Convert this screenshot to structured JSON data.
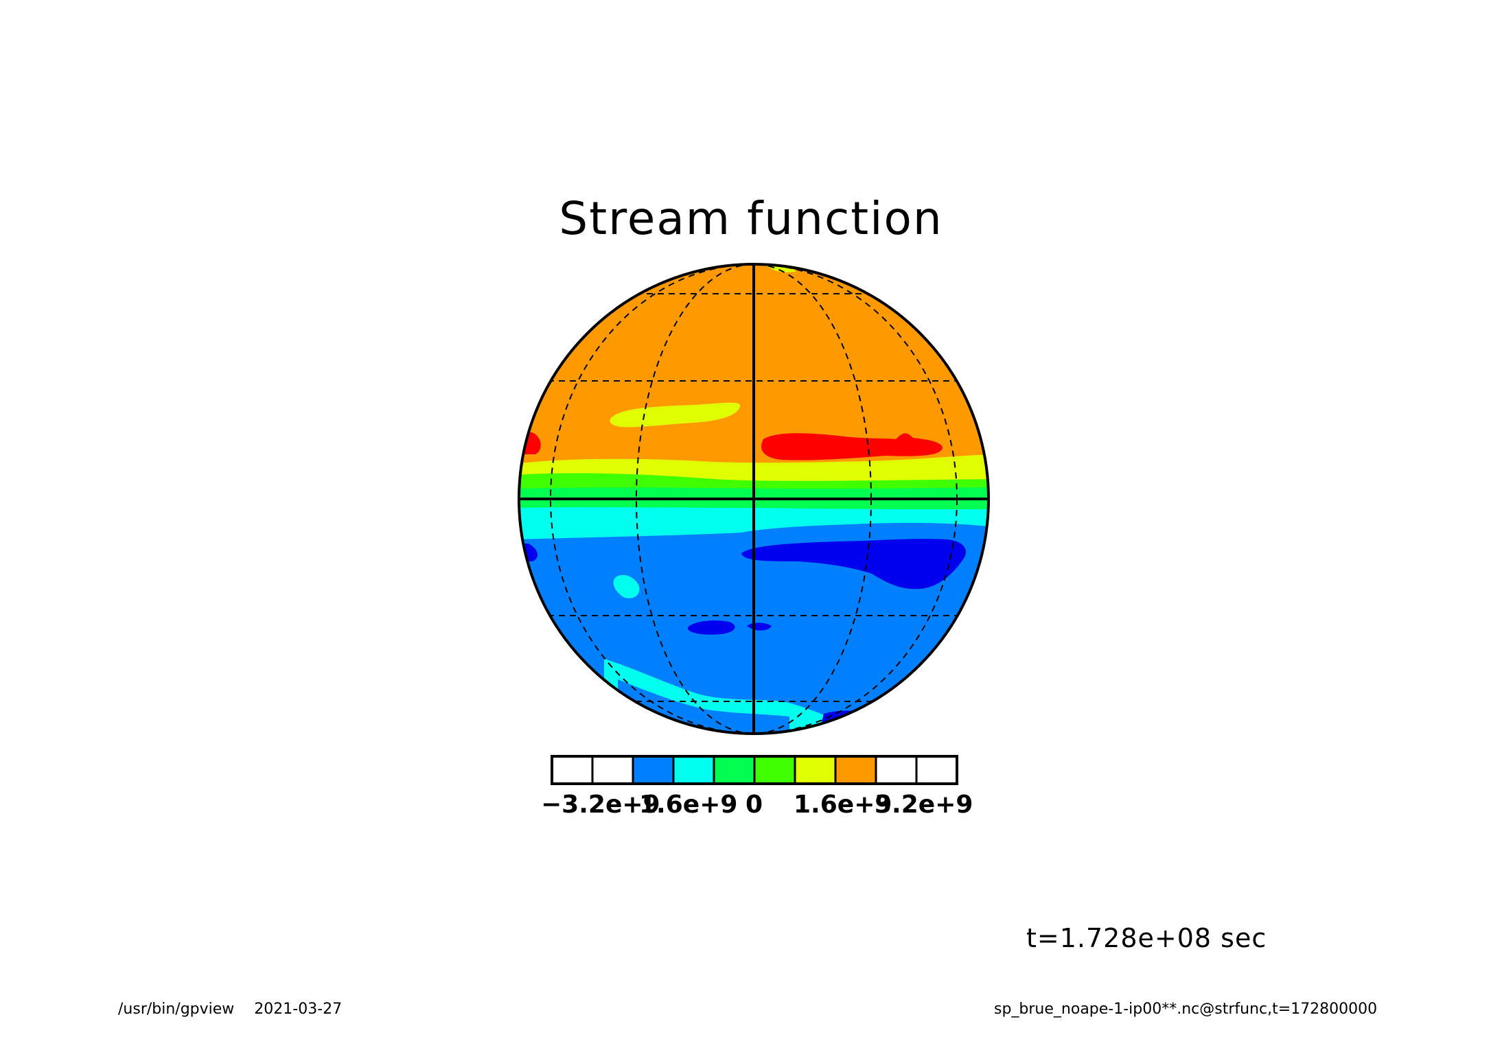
{
  "title": "Stream function",
  "time_label": "t=1.728e+08 sec",
  "footer": {
    "program": "/usr/bin/gpview",
    "date": "2021-03-27",
    "source": "sp_brue_noape-1-ip00**.nc@strfunc,t=172800000"
  },
  "colorbar": {
    "colors": [
      "#ffffff",
      "#ffffff",
      "#0080ff",
      "#00ffee",
      "#00ff50",
      "#40ff00",
      "#e0ff00",
      "#ff9900",
      "#ffffff",
      "#ffffff"
    ],
    "labels": [
      "−3.2e+9",
      "1.6e+9",
      "0",
      "1.6e+9",
      "3.2e+9"
    ]
  },
  "map": {
    "projection": "orthographic",
    "graticule": "dashed",
    "colors": {
      "orange": "#ff9900",
      "yellow": "#e0ff00",
      "light_green": "#40ff00",
      "green": "#00ff50",
      "cyan": "#00ffee",
      "blue": "#0080ff",
      "dark_blue": "#0000ee",
      "red": "#ff0000"
    }
  }
}
